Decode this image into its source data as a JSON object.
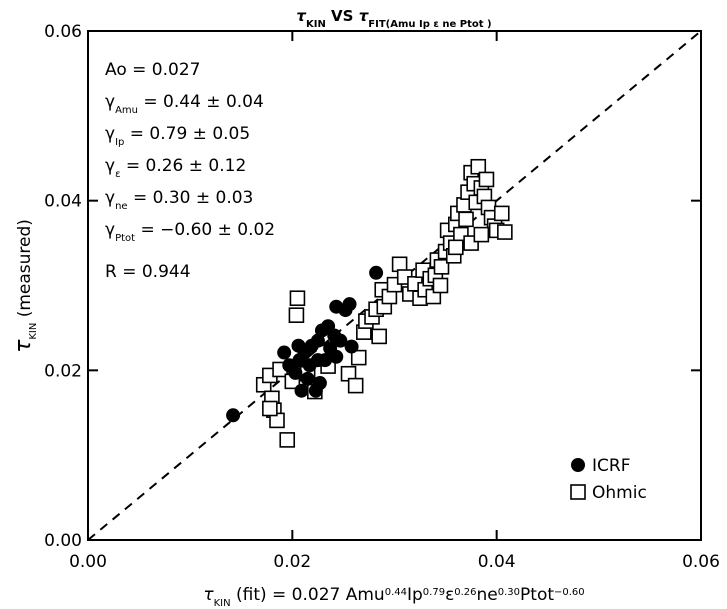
{
  "chart_data": {
    "type": "scatter",
    "title": [
      "τ",
      "KIN",
      " VS ",
      "τ",
      "FIT(Amu Ip ε ne Ptot )"
    ],
    "x_label": [
      "τ",
      "KIN",
      " (fit) = 0.027 Amu",
      "0.44",
      "Ip",
      "0.79",
      "ε",
      "0.26",
      "ne",
      "0.30",
      "Ptot",
      "−0.60"
    ],
    "y_label": [
      "τ",
      "KIN",
      " (measured)"
    ],
    "annotations": [
      [
        "Ao = 0.027"
      ],
      [
        "γ",
        "Amu",
        " = 0.44  ± 0.04"
      ],
      [
        "γ",
        "Ip",
        " = 0.79  ± 0.05"
      ],
      [
        "γ",
        "ε",
        " = 0.26  ± 0.12"
      ],
      [
        "γ",
        "ne",
        " = 0.30  ± 0.03"
      ],
      [
        "γ",
        "Ptot",
        " = −0.60  ± 0.02"
      ],
      [
        "R = 0.944"
      ]
    ],
    "xlim": [
      0,
      0.06
    ],
    "ylim": [
      0,
      0.06
    ],
    "xticks": [
      {
        "value": 0,
        "label": "0.00"
      },
      {
        "value": 0.02,
        "label": "0.02"
      },
      {
        "value": 0.04,
        "label": "0.04"
      },
      {
        "value": 0.06,
        "label": "0.06"
      }
    ],
    "yticks": [
      {
        "value": 0,
        "label": "0.00"
      },
      {
        "value": 0.02,
        "label": "0.02"
      },
      {
        "value": 0.04,
        "label": "0.04"
      },
      {
        "value": 0.06,
        "label": "0.06"
      }
    ],
    "identity_line": true,
    "legend": "lower right",
    "series": [
      {
        "name": "ICRF",
        "color": "#000000",
        "marker": "filled-circle",
        "x": [
          0.0142,
          0.0227,
          0.0223,
          0.0215,
          0.0207,
          0.0212,
          0.0219,
          0.0225,
          0.0229,
          0.0235,
          0.0237,
          0.0241,
          0.0247,
          0.0203,
          0.0197,
          0.0206,
          0.0217,
          0.0232,
          0.0243,
          0.0252,
          0.0243,
          0.0256,
          0.0282,
          0.0258,
          0.0225,
          0.0192,
          0.0209
        ],
        "values": [
          0.0147,
          0.0185,
          0.0176,
          0.019,
          0.0212,
          0.0221,
          0.0229,
          0.0235,
          0.0247,
          0.0252,
          0.0226,
          0.0241,
          0.0235,
          0.0197,
          0.0206,
          0.0229,
          0.0206,
          0.0212,
          0.0216,
          0.0271,
          0.0275,
          0.0278,
          0.0315,
          0.0228,
          0.0212,
          0.0221,
          0.0176
        ]
      },
      {
        "name": "Ohmic",
        "color": "#000000",
        "marker": "open-square",
        "x": [
          0.0172,
          0.0178,
          0.018,
          0.0182,
          0.0185,
          0.0178,
          0.0188,
          0.0195,
          0.02,
          0.0205,
          0.0204,
          0.0215,
          0.0222,
          0.0235,
          0.0255,
          0.0262,
          0.0265,
          0.027,
          0.0272,
          0.0278,
          0.0285,
          0.0282,
          0.029,
          0.0288,
          0.0295,
          0.03,
          0.0305,
          0.031,
          0.0315,
          0.032,
          0.0325,
          0.033,
          0.0328,
          0.0335,
          0.034,
          0.0342,
          0.0346,
          0.035,
          0.0352,
          0.0355,
          0.0358,
          0.036,
          0.0362,
          0.0365,
          0.0368,
          0.037,
          0.0372,
          0.0375,
          0.0378,
          0.038,
          0.0382,
          0.0385,
          0.0388,
          0.039,
          0.0392,
          0.0395,
          0.0398,
          0.04,
          0.0405,
          0.0408,
          0.0338,
          0.0345,
          0.036,
          0.0375,
          0.0385
        ],
        "values": [
          0.0183,
          0.0194,
          0.0167,
          0.0153,
          0.0141,
          0.0155,
          0.0201,
          0.0118,
          0.0187,
          0.0285,
          0.0265,
          0.0196,
          0.0175,
          0.0205,
          0.0196,
          0.0182,
          0.0215,
          0.0245,
          0.0258,
          0.0263,
          0.024,
          0.0272,
          0.0275,
          0.0295,
          0.0287,
          0.0301,
          0.0325,
          0.031,
          0.029,
          0.0302,
          0.0285,
          0.0295,
          0.0318,
          0.0308,
          0.0312,
          0.033,
          0.0322,
          0.034,
          0.0365,
          0.035,
          0.0335,
          0.0372,
          0.0385,
          0.036,
          0.0395,
          0.0378,
          0.041,
          0.0433,
          0.042,
          0.0398,
          0.044,
          0.0415,
          0.0405,
          0.0425,
          0.0392,
          0.038,
          0.037,
          0.0365,
          0.0385,
          0.0363,
          0.0287,
          0.03,
          0.0345,
          0.035,
          0.036
        ]
      }
    ]
  }
}
